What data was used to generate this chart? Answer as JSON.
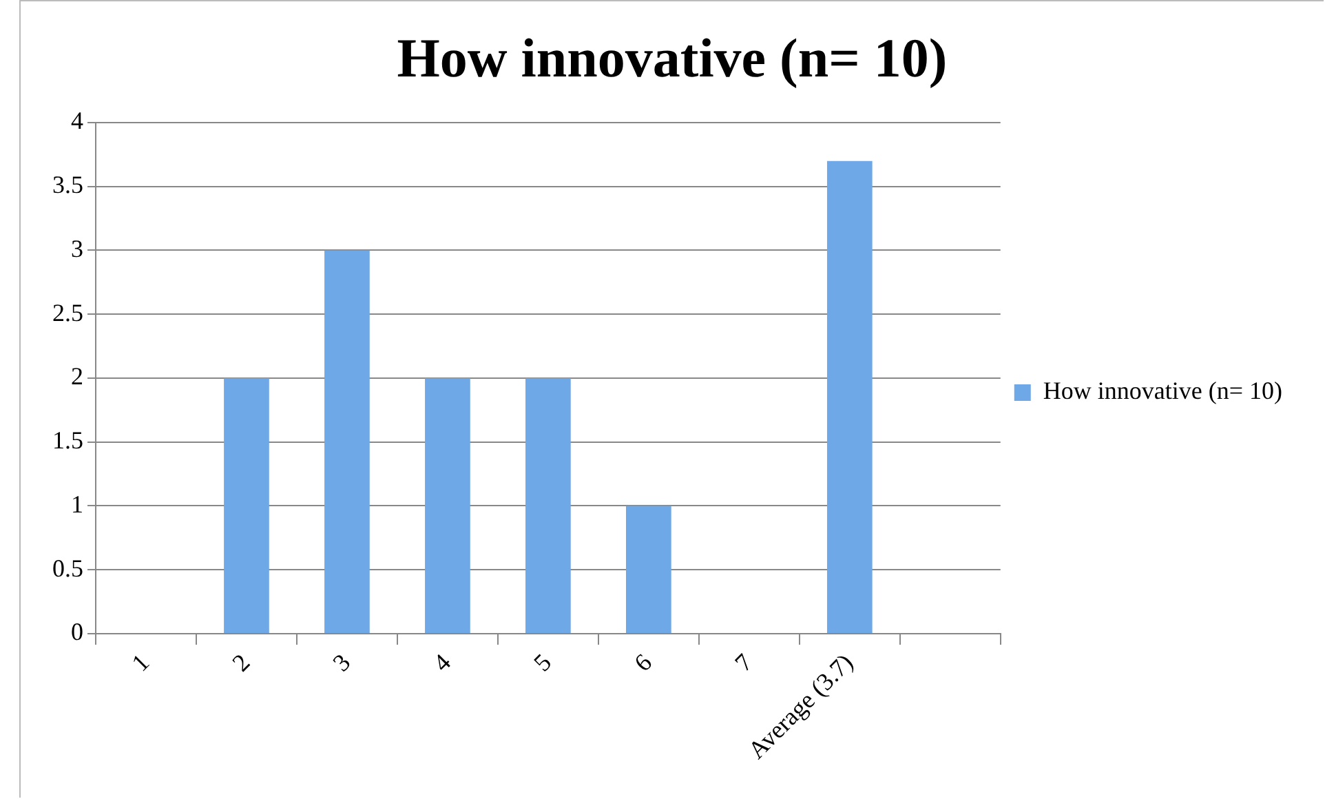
{
  "chart_data": {
    "type": "bar",
    "title": "How innovative (n= 10)",
    "categories": [
      "1",
      "2",
      "3",
      "4",
      "5",
      "6",
      "7",
      "Average (3.7)",
      null
    ],
    "series": [
      {
        "name": "How innovative (n= 10)",
        "color": "#6fa8e6",
        "values": [
          0,
          2,
          3,
          2,
          2,
          1,
          0,
          3.7,
          null
        ]
      }
    ],
    "ylim": [
      0,
      4
    ],
    "yticks": [
      0,
      0.5,
      1,
      1.5,
      2,
      2.5,
      3,
      3.5,
      4
    ],
    "grid": "y",
    "legend": "right"
  }
}
